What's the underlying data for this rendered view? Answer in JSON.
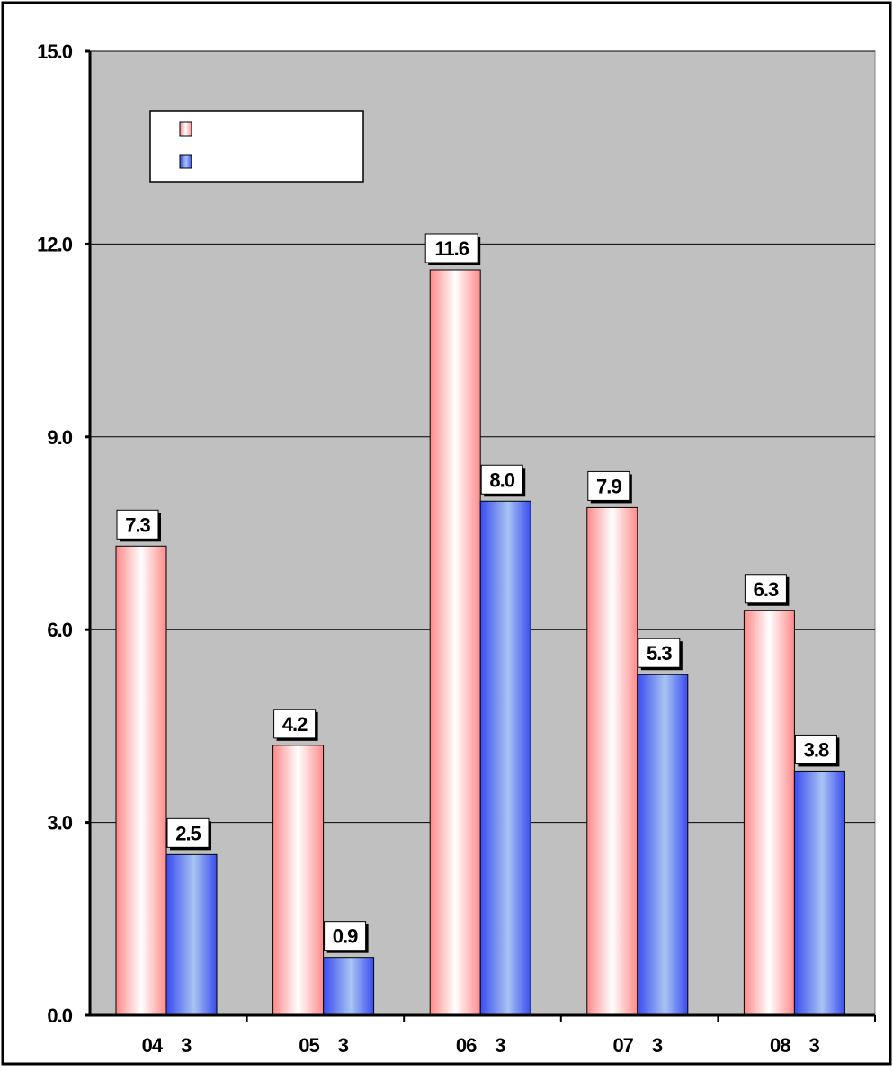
{
  "chart_data": {
    "type": "bar",
    "categories": [
      "04　3",
      "05　3",
      "06　3",
      "07　3",
      "08　3"
    ],
    "series": [
      {
        "values": [
          7.3,
          4.2,
          11.6,
          7.9,
          6.3
        ],
        "data_labels": [
          "7.3",
          "4.2",
          "11.6",
          "7.9",
          "6.3"
        ]
      },
      {
        "values": [
          2.5,
          0.9,
          8.0,
          5.3,
          3.8
        ],
        "data_labels": [
          "2.5",
          "0.9",
          "8.0",
          "5.3",
          "3.8"
        ]
      }
    ],
    "ylim": [
      0,
      15
    ],
    "yticks": [
      0,
      3,
      6,
      9,
      12,
      15
    ],
    "ytick_labels": [
      "0.0",
      "3.0",
      "6.0",
      "9.0",
      "12.0",
      "15.0"
    ],
    "grid": true,
    "legend": "top-left",
    "colors": {
      "series_1": "#ff8a8a",
      "series_2": "#3a4cf0",
      "plot_background": "#c0c0c0",
      "frame": "#000000"
    }
  }
}
